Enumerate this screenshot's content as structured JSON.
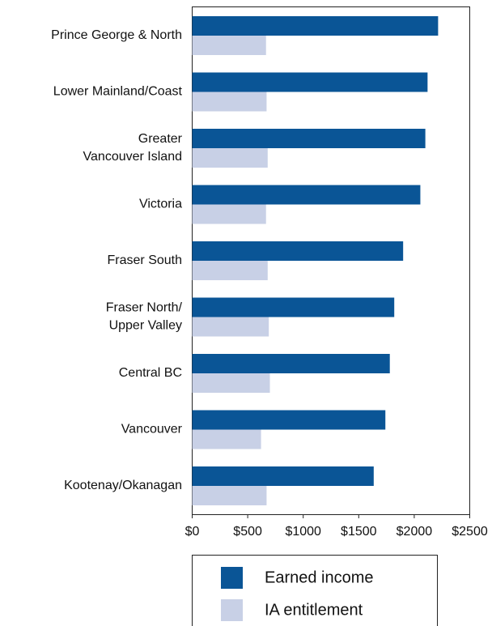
{
  "chart_data": {
    "type": "bar",
    "orientation": "horizontal",
    "categories": [
      [
        "Prince George & North"
      ],
      [
        "Lower Mainland/Coast"
      ],
      [
        "Greater",
        "Vancouver Island"
      ],
      [
        "Victoria"
      ],
      [
        "Fraser South"
      ],
      [
        "Fraser North/",
        "Upper Valley"
      ],
      [
        "Central BC"
      ],
      [
        "Vancouver"
      ],
      [
        "Kootenay/Okanagan"
      ]
    ],
    "series": [
      {
        "name": "Earned income",
        "color": "#0a5596",
        "values": [
          2215,
          2120,
          2100,
          2055,
          1900,
          1820,
          1780,
          1740,
          1635
        ]
      },
      {
        "name": "IA entitlement",
        "color": "#c8d0e6",
        "values": [
          665,
          670,
          680,
          665,
          680,
          690,
          700,
          620,
          670
        ]
      }
    ],
    "xlim": [
      0,
      2500
    ],
    "xticks": [
      {
        "value": 0,
        "label": "$0"
      },
      {
        "value": 500,
        "label": "$500"
      },
      {
        "value": 1000,
        "label": "$1000"
      },
      {
        "value": 1500,
        "label": "$1500"
      },
      {
        "value": 2000,
        "label": "$2000"
      },
      {
        "value": 2500,
        "label": "$2500"
      }
    ],
    "grid": false
  }
}
